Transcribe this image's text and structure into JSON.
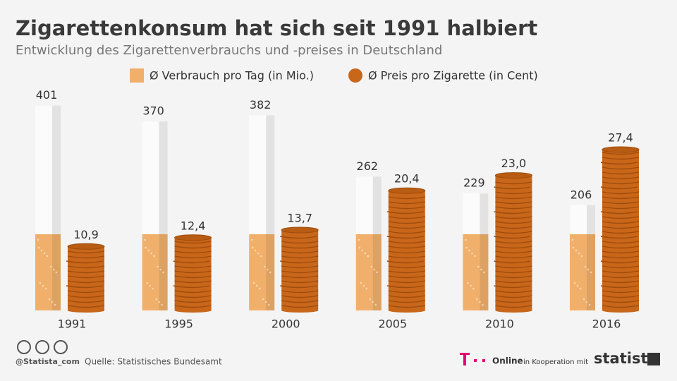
{
  "chart_data": {
    "type": "cigarette-coin",
    "title": "Zigarettenkonsum hat sich seit 1991 halbiert",
    "subtitle": "Entwicklung des Zigarettenverbrauchs und -preises in Deutschland",
    "categories": [
      "1991",
      "1995",
      "2000",
      "2005",
      "2010",
      "2016"
    ],
    "series": [
      {
        "name": "Ø Verbrauch pro Tag (in Mio.)",
        "color": "#f0b06b",
        "values": [
          401,
          370,
          382,
          262,
          229,
          206
        ]
      },
      {
        "name": "Ø Preis pro Zigarette (in Cent)",
        "color": "#c8661a",
        "axis": "y2",
        "values": [
          10.9,
          12.4,
          13.7,
          20.4,
          23.0,
          27.4
        ],
        "value_labels": [
          "10,9",
          "12,4",
          "13,7",
          "20,4",
          "23,0",
          "27,4"
        ]
      }
    ],
    "ylim": [
      0,
      500
    ],
    "y2lim": [
      0,
      43.5
    ],
    "source": "Quelle: Statistisches Bundesamt",
    "handle": "@Statista_com"
  },
  "footer": {
    "partner": "Online",
    "cooperation": "in Kooperation mit",
    "brand": "statista"
  }
}
